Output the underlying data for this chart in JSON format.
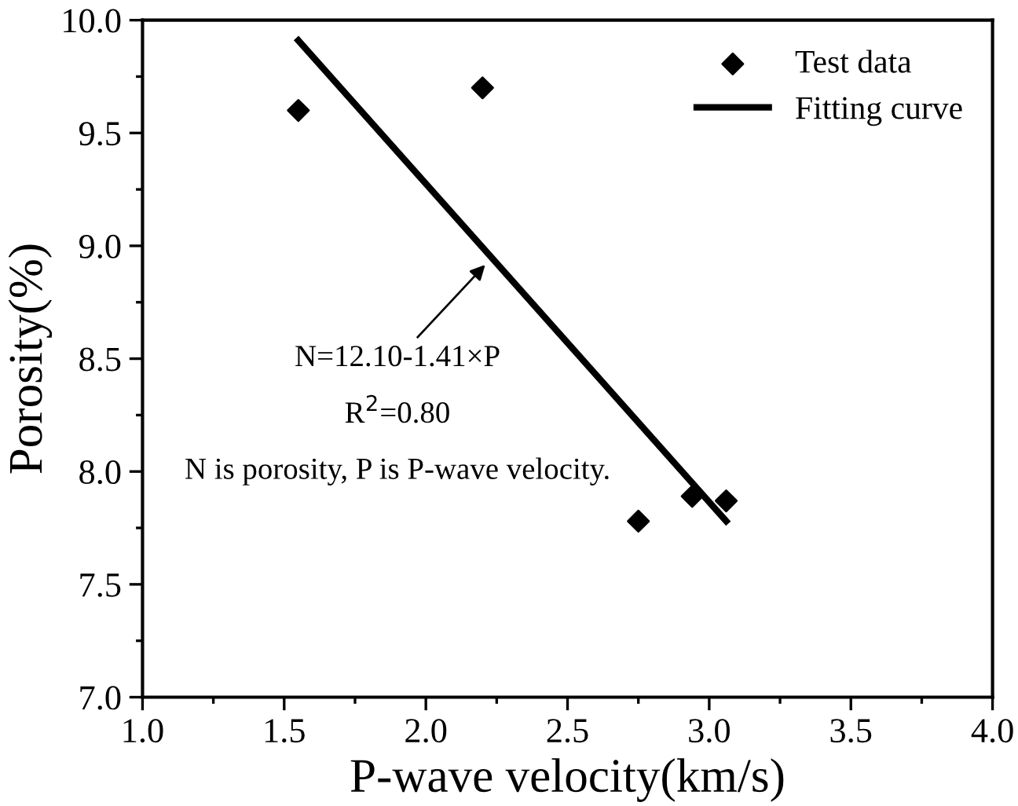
{
  "chart_data": {
    "type": "scatter",
    "xlabel": "P-wave velocity(km/s)",
    "ylabel": "Porosity(%)",
    "xlim": [
      1.0,
      4.0
    ],
    "xticks": [
      {
        "value": 1.0,
        "label": "1.0"
      },
      {
        "value": 1.5,
        "label": "1.5"
      },
      {
        "value": 2.0,
        "label": "2.0"
      },
      {
        "value": 2.5,
        "label": "2.5"
      },
      {
        "value": 3.0,
        "label": "3.0"
      },
      {
        "value": 3.5,
        "label": "3.5"
      },
      {
        "value": 4.0,
        "label": "4.0"
      }
    ],
    "ylim": [
      7.0,
      10.0
    ],
    "yticks": [
      {
        "value": 7.0,
        "label": "7.0"
      },
      {
        "value": 7.5,
        "label": "7.5"
      },
      {
        "value": 8.0,
        "label": "8.0"
      },
      {
        "value": 8.5,
        "label": "8.5"
      },
      {
        "value": 9.0,
        "label": "9.0"
      },
      {
        "value": 9.5,
        "label": "9.5"
      },
      {
        "value": 10.0,
        "label": "10.0"
      }
    ],
    "series": [
      {
        "name": "Test data",
        "type": "scatter",
        "color": "#000000",
        "marker": "diamond",
        "x": [
          1.55,
          2.2,
          2.75,
          2.94,
          3.06
        ],
        "values": [
          9.6,
          9.7,
          7.78,
          7.89,
          7.87
        ]
      },
      {
        "name": "Fitting curve",
        "type": "line",
        "color": "#000000",
        "marker": "none",
        "line_style": "solid",
        "x": [
          1.55,
          3.06
        ],
        "values": [
          9.91,
          7.78
        ]
      }
    ],
    "annotations": [
      {
        "text": "N=12.10-1.41×P",
        "x": 2.22,
        "y": 8.93
      },
      "R$^{2}$=0.80",
      "N is porosity, P is P-wave velocity."
    ],
    "legend": "top right",
    "grid": false
  }
}
